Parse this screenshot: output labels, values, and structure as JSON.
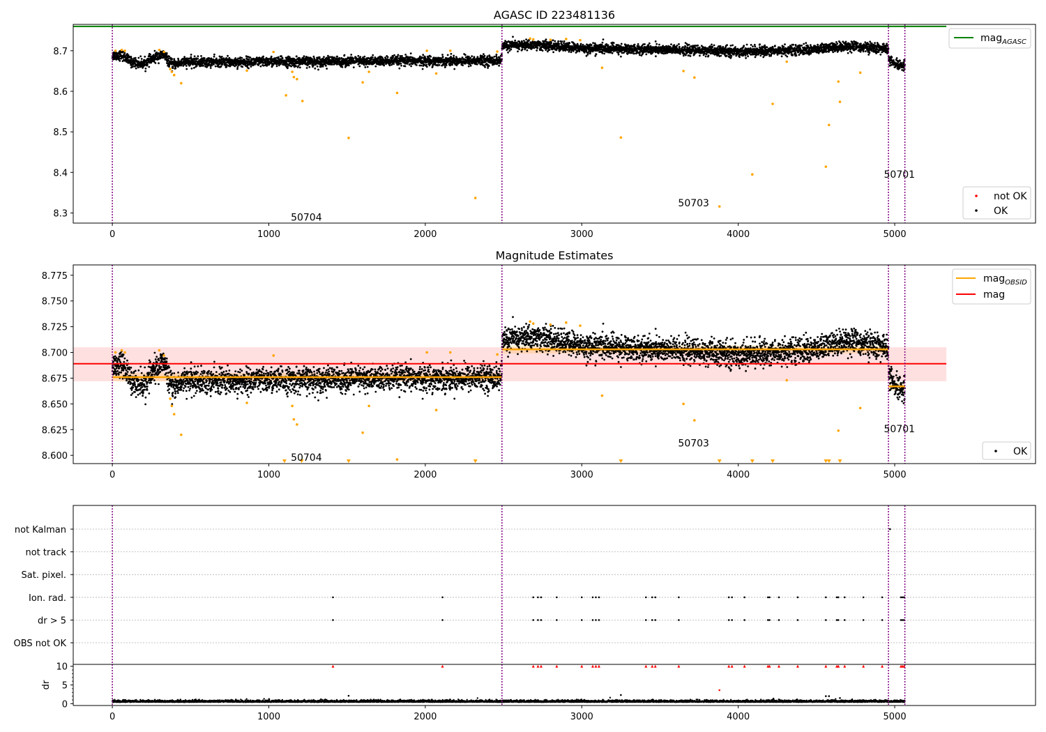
{
  "figure": {
    "title_top": "AGASC ID 223481136",
    "title_mid": "Magnitude Estimates"
  },
  "colors": {
    "ok": "#000000",
    "not_ok": "#ff0000",
    "orange": "#ffa500",
    "agasc_line": "#008000",
    "obs_boundary": "#800080",
    "mean_band": "#ffcccc"
  },
  "chart_data": [
    {
      "id": "top",
      "type": "scatter",
      "title": "AGASC ID 223481136",
      "xlim": [
        -250,
        5900
      ],
      "ylim": [
        8.275,
        8.765
      ],
      "xticks": [
        0,
        1000,
        2000,
        3000,
        4000,
        5000
      ],
      "yticks": [
        8.3,
        8.4,
        8.5,
        8.6,
        8.7
      ],
      "ytick_labels": [
        "8.3",
        "8.4",
        "8.5",
        "8.6",
        "8.7"
      ],
      "mag_agasc": 8.76,
      "mag_agasc_xrange": [
        -250,
        5330
      ],
      "obs_boundaries": [
        0,
        2490,
        4960,
        5065
      ],
      "obs_labels": [
        {
          "text": "50704",
          "x": 1240,
          "y": 8.29
        },
        {
          "text": "50703",
          "x": 3715,
          "y": 8.325
        },
        {
          "text": "50701",
          "x": 5030,
          "y": 8.395
        }
      ],
      "ok_segments": [
        {
          "x": [
            0,
            2490
          ],
          "profile": [
            [
              0,
              8.688
            ],
            [
              60,
              8.69
            ],
            [
              120,
              8.672
            ],
            [
              200,
              8.668
            ],
            [
              280,
              8.685
            ],
            [
              330,
              8.69
            ],
            [
              380,
              8.665
            ],
            [
              450,
              8.672
            ],
            [
              700,
              8.672
            ],
            [
              2490,
              8.676
            ]
          ],
          "sd": 0.006
        },
        {
          "x": [
            2490,
            4960
          ],
          "profile": [
            [
              2490,
              8.712
            ],
            [
              2700,
              8.715
            ],
            [
              3000,
              8.706
            ],
            [
              3500,
              8.703
            ],
            [
              4000,
              8.698
            ],
            [
              4500,
              8.703
            ],
            [
              4700,
              8.712
            ],
            [
              4960,
              8.704
            ]
          ],
          "sd": 0.006
        },
        {
          "x": [
            4960,
            5065
          ],
          "profile": [
            [
              4960,
              8.68
            ],
            [
              5000,
              8.665
            ],
            [
              5065,
              8.665
            ]
          ],
          "sd": 0.006
        }
      ],
      "orange_points": [
        [
          20,
          8.7
        ],
        [
          60,
          8.702
        ],
        [
          80,
          8.7
        ],
        [
          300,
          8.702
        ],
        [
          330,
          8.697
        ],
        [
          370,
          8.655
        ],
        [
          380,
          8.648
        ],
        [
          395,
          8.64
        ],
        [
          440,
          8.62
        ],
        [
          860,
          8.651
        ],
        [
          1030,
          8.697
        ],
        [
          1110,
          8.59
        ],
        [
          1150,
          8.648
        ],
        [
          1160,
          8.635
        ],
        [
          1180,
          8.63
        ],
        [
          1215,
          8.576
        ],
        [
          1510,
          8.485
        ],
        [
          1600,
          8.622
        ],
        [
          1640,
          8.648
        ],
        [
          1820,
          8.596
        ],
        [
          2010,
          8.7
        ],
        [
          2070,
          8.644
        ],
        [
          2160,
          8.7
        ],
        [
          2320,
          8.337
        ],
        [
          2460,
          8.698
        ],
        [
          2670,
          8.73
        ],
        [
          2690,
          8.728
        ],
        [
          2800,
          8.727
        ],
        [
          2900,
          8.729
        ],
        [
          2990,
          8.726
        ],
        [
          3130,
          8.658
        ],
        [
          3250,
          8.486
        ],
        [
          3650,
          8.65
        ],
        [
          3720,
          8.634
        ],
        [
          3880,
          8.316
        ],
        [
          4090,
          8.395
        ],
        [
          4220,
          8.569
        ],
        [
          4310,
          8.673
        ],
        [
          4560,
          8.414
        ],
        [
          4580,
          8.517
        ],
        [
          4640,
          8.624
        ],
        [
          4650,
          8.574
        ],
        [
          4780,
          8.646
        ]
      ],
      "legend": {
        "line": [
          {
            "label": "mag",
            "sub": "AGASC",
            "color": "#008000"
          }
        ],
        "markers": [
          {
            "label": "not OK",
            "color": "#ff0000"
          },
          {
            "label": "OK",
            "color": "#000000"
          }
        ]
      }
    },
    {
      "id": "mid",
      "type": "scatter",
      "title": "Magnitude Estimates",
      "xlim": [
        -250,
        5900
      ],
      "ylim": [
        8.592,
        8.785
      ],
      "xticks": [
        0,
        1000,
        2000,
        3000,
        4000,
        5000
      ],
      "yticks": [
        8.6,
        8.625,
        8.65,
        8.675,
        8.7,
        8.725,
        8.75,
        8.775
      ],
      "ytick_labels": [
        "8.600",
        "8.625",
        "8.650",
        "8.675",
        "8.700",
        "8.725",
        "8.750",
        "8.775"
      ],
      "mag": 8.689,
      "mag_band": [
        8.672,
        8.705
      ],
      "mag_xrange": [
        0,
        5330
      ],
      "mag_obsid": [
        {
          "x": [
            0,
            2490
          ],
          "value": 8.676
        },
        {
          "x": [
            2490,
            4960
          ],
          "value": 8.703
        },
        {
          "x": [
            4960,
            5065
          ],
          "value": 8.667
        }
      ],
      "obs_boundaries": [
        0,
        2490,
        4960,
        5065
      ],
      "obs_labels": [
        {
          "text": "50704",
          "x": 1240,
          "y": 8.598
        },
        {
          "text": "50703",
          "x": 3715,
          "y": 8.612
        },
        {
          "text": "50701",
          "x": 5030,
          "y": 8.626
        }
      ],
      "clipped_markers_x": [
        1100,
        1210,
        1510,
        2320,
        3250,
        3880,
        4090,
        4220,
        4560,
        4580,
        4650
      ],
      "legend": {
        "line": [
          {
            "label": "mag",
            "sub": "OBSID",
            "color": "#ffa500"
          },
          {
            "label": "mag",
            "sub": "",
            "color": "#ff0000"
          }
        ],
        "markers": [
          {
            "label": "OK",
            "color": "#000000"
          }
        ]
      }
    },
    {
      "id": "flags",
      "type": "scatter",
      "xlim": [
        -250,
        5900
      ],
      "categories": [
        "not Kalman",
        "not track",
        "Sat. pixel.",
        "Ion. rad.",
        "dr > 5",
        "OBS not OK"
      ],
      "flag_points": {
        "not Kalman": [
          4970
        ],
        "not track": [],
        "Sat. pixel.": [],
        "Ion. rad.": [
          1410,
          2110,
          2690,
          2720,
          2740,
          2840,
          3000,
          3070,
          3090,
          3110,
          3410,
          3450,
          3470,
          3620,
          3940,
          3960,
          4040,
          4190,
          4200,
          4260,
          4380,
          4560,
          4630,
          4640,
          4680,
          4800,
          4920,
          5040,
          5050,
          5060
        ],
        "dr > 5": [
          1410,
          2110,
          2690,
          2720,
          2740,
          2840,
          3000,
          3070,
          3090,
          3110,
          3410,
          3450,
          3470,
          3620,
          3940,
          3960,
          4040,
          4190,
          4200,
          4260,
          4380,
          4560,
          4630,
          4640,
          4680,
          4800,
          4920,
          5040,
          5050,
          5060
        ],
        "OBS not OK": []
      },
      "obs_boundaries": [
        0,
        2490,
        4960,
        5065
      ]
    },
    {
      "id": "dr",
      "type": "scatter",
      "xlim": [
        -250,
        5900
      ],
      "ylim": [
        -0.5,
        10.5
      ],
      "ylabel": "dr",
      "xticks": [
        0,
        1000,
        2000,
        3000,
        4000,
        5000
      ],
      "yticks": [
        0,
        5,
        10
      ],
      "ytick_labels": [
        "0",
        "5",
        "10"
      ],
      "dr_base": 0.4,
      "dr_range": [
        0,
        5065
      ],
      "clipped_markers_x": [
        1410,
        2110,
        2690,
        2720,
        2740,
        2840,
        3000,
        3070,
        3090,
        3110,
        3410,
        3450,
        3470,
        3620,
        3940,
        3960,
        4040,
        4190,
        4200,
        4260,
        4380,
        4560,
        4630,
        4640,
        4680,
        4800,
        4920,
        5040,
        5050,
        5060
      ],
      "outliers": [
        [
          1510,
          2.1
        ],
        [
          3250,
          2.3
        ],
        [
          3880,
          3.6
        ],
        [
          4560,
          2.0
        ],
        [
          4580,
          2.0
        ],
        [
          4650,
          1.5
        ]
      ],
      "obs_boundaries": [
        0,
        2490,
        4960,
        5065
      ]
    }
  ]
}
